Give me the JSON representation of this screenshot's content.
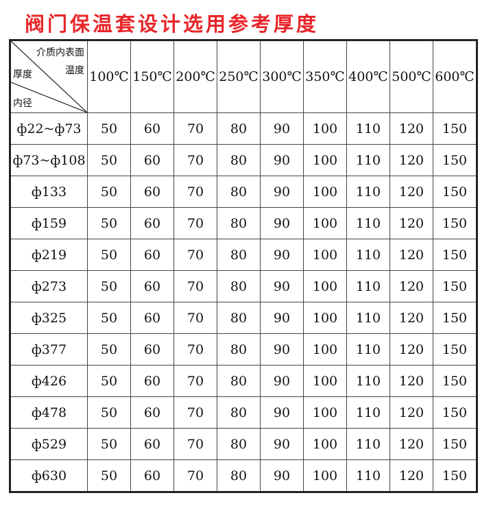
{
  "title": "阀门保温套设计选用参考厚度",
  "corner": {
    "top": "介质内表面",
    "top2": "温度",
    "middle": "厚度",
    "bottom": "内径"
  },
  "columns": [
    "100℃",
    "150℃",
    "200℃",
    "250℃",
    "300℃",
    "350℃",
    "400℃",
    "500℃",
    "600℃"
  ],
  "rows": [
    {
      "label": "ф22~ф73",
      "values": [
        "50",
        "60",
        "70",
        "80",
        "90",
        "100",
        "110",
        "120",
        "150"
      ]
    },
    {
      "label": "ф73~ф108",
      "values": [
        "50",
        "60",
        "70",
        "80",
        "90",
        "100",
        "110",
        "120",
        "150"
      ]
    },
    {
      "label": "ф133",
      "values": [
        "50",
        "60",
        "70",
        "80",
        "90",
        "100",
        "110",
        "120",
        "150"
      ]
    },
    {
      "label": "ф159",
      "values": [
        "50",
        "60",
        "70",
        "80",
        "90",
        "100",
        "110",
        "120",
        "150"
      ]
    },
    {
      "label": "ф219",
      "values": [
        "50",
        "60",
        "70",
        "80",
        "90",
        "100",
        "110",
        "120",
        "150"
      ]
    },
    {
      "label": "ф273",
      "values": [
        "50",
        "60",
        "70",
        "80",
        "90",
        "100",
        "110",
        "120",
        "150"
      ]
    },
    {
      "label": "ф325",
      "values": [
        "50",
        "60",
        "70",
        "80",
        "90",
        "100",
        "110",
        "120",
        "150"
      ]
    },
    {
      "label": "ф377",
      "values": [
        "50",
        "60",
        "70",
        "80",
        "90",
        "100",
        "110",
        "120",
        "150"
      ]
    },
    {
      "label": "ф426",
      "values": [
        "50",
        "60",
        "70",
        "80",
        "90",
        "100",
        "110",
        "120",
        "150"
      ]
    },
    {
      "label": "ф478",
      "values": [
        "50",
        "60",
        "70",
        "80",
        "90",
        "100",
        "110",
        "120",
        "150"
      ]
    },
    {
      "label": "ф529",
      "values": [
        "50",
        "60",
        "70",
        "80",
        "90",
        "100",
        "110",
        "120",
        "150"
      ]
    },
    {
      "label": "ф630",
      "values": [
        "50",
        "60",
        "70",
        "80",
        "90",
        "100",
        "110",
        "120",
        "150"
      ]
    }
  ]
}
